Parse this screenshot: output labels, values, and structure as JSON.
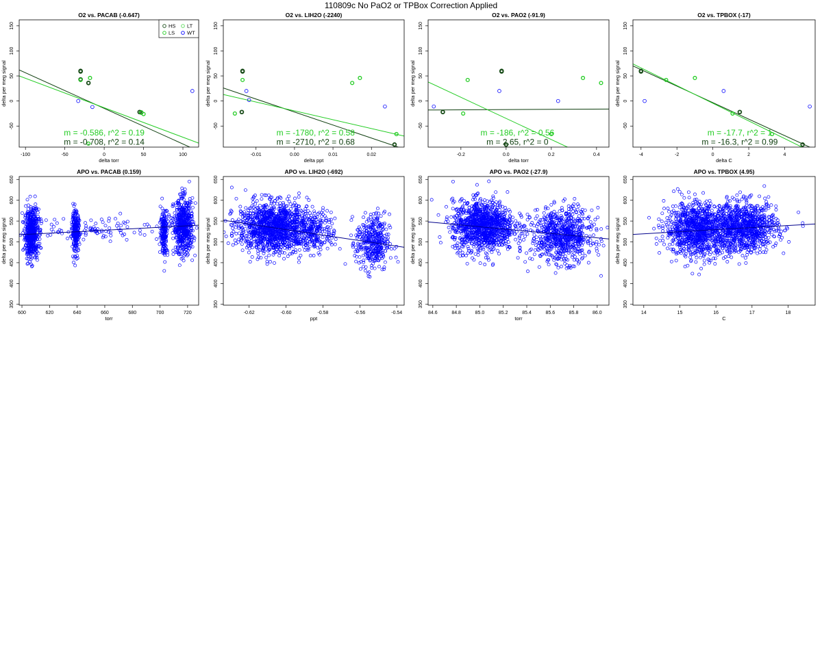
{
  "suptitle": "110809c   No PaO2 or TPBox Correction Applied",
  "colors": {
    "HS": "#1a4d1a",
    "LS": "#22cc22",
    "LT": "#5ddc5d",
    "WT": "#0000ff",
    "fit_dark": "#0d3d0d",
    "fit_light": "#22cc22",
    "fit_blue": "#00008b"
  },
  "chart_data": [
    {
      "type": "scatter",
      "title": "O2 vs. PACAB (-0.647)",
      "xlabel": "delta torr",
      "ylabel": "delta per meg signal",
      "xlim": [
        -108,
        120
      ],
      "ylim": [
        -92,
        162
      ],
      "xticks": [
        -100,
        -50,
        0,
        50,
        100
      ],
      "xtick_labels": [
        "-100",
        "-50",
        "0",
        "50",
        "100"
      ],
      "yticks": [
        -50,
        0,
        50,
        100,
        150
      ],
      "ytick_labels": [
        "-50",
        "0",
        "50",
        "100",
        "150"
      ],
      "legend": {
        "position": "top-right",
        "entries": [
          "HS",
          "LT",
          "LS",
          "WT"
        ]
      },
      "series": [
        {
          "name": "HS",
          "x": [
            -30,
            -30,
            -30,
            -20,
            45,
            47
          ],
          "y": [
            60,
            59,
            43,
            36,
            -22,
            -23
          ]
        },
        {
          "name": "LS",
          "x": [
            -30,
            -18,
            47,
            50,
            -20
          ],
          "y": [
            42,
            46,
            -23,
            -26,
            -85
          ]
        },
        {
          "name": "WT",
          "x": [
            -33,
            -15,
            112
          ],
          "y": [
            0,
            -12,
            20
          ]
        }
      ],
      "fits": [
        {
          "color": "fit_dark",
          "x": [
            -108,
            120
          ],
          "y": [
            62,
            -100
          ]
        },
        {
          "color": "fit_light",
          "x": [
            -108,
            120
          ],
          "y": [
            50,
            -84
          ]
        }
      ],
      "annotations": [
        {
          "text": "m = -0.586, r^2 = 0.19",
          "color": "fit_light",
          "x": 0,
          "y": -63
        },
        {
          "text": "m = -0.708, r^2 = 0.14",
          "color": "fit_dark",
          "x": 0,
          "y": -82
        }
      ]
    },
    {
      "type": "scatter",
      "title": "O2 vs. LIH2O (-2240)",
      "xlabel": "delta ppt",
      "ylabel": "delta per meg signal",
      "xlim": [
        -0.0185,
        0.0285
      ],
      "ylim": [
        -92,
        162
      ],
      "xticks": [
        -0.01,
        0,
        0.01,
        0.02
      ],
      "xtick_labels": [
        "-0.01",
        "0.00",
        "0.01",
        "0.02"
      ],
      "yticks": [
        -50,
        0,
        50,
        100,
        150
      ],
      "ytick_labels": [
        "-50",
        "0",
        "50",
        "100",
        "150"
      ],
      "series": [
        {
          "name": "HS",
          "x": [
            -0.0135,
            -0.0135,
            -0.0137,
            0.026
          ],
          "y": [
            60,
            59,
            -22,
            -87
          ]
        },
        {
          "name": "LS",
          "x": [
            -0.0135,
            -0.0155,
            0.017,
            0.015,
            0.0265
          ],
          "y": [
            42,
            -25,
            46,
            36,
            -66
          ]
        },
        {
          "name": "WT",
          "x": [
            -0.0125,
            -0.0118,
            0.0235
          ],
          "y": [
            20,
            2,
            -11
          ]
        }
      ],
      "fits": [
        {
          "color": "fit_dark",
          "x": [
            -0.0185,
            0.0285
          ],
          "y": [
            26,
            -96
          ]
        },
        {
          "color": "fit_light",
          "x": [
            -0.0185,
            0.0285
          ],
          "y": [
            13,
            -70
          ]
        }
      ],
      "annotations": [
        {
          "text": "m = -1780, r^2 = 0.58",
          "color": "fit_light",
          "x": 0.0055,
          "y": -63
        },
        {
          "text": "m = -2710, r^2 = 0.68",
          "color": "fit_dark",
          "x": 0.0055,
          "y": -82
        }
      ]
    },
    {
      "type": "scatter",
      "title": "O2 vs. PAO2 (-91.9)",
      "xlabel": "delta torr",
      "ylabel": "delta per meg signal",
      "xlim": [
        -0.345,
        0.455
      ],
      "ylim": [
        -92,
        162
      ],
      "xticks": [
        -0.2,
        0,
        0.2,
        0.4
      ],
      "xtick_labels": [
        "-0.2",
        "0.0",
        "0.2",
        "0.4"
      ],
      "yticks": [
        -50,
        0,
        50,
        100,
        150
      ],
      "ytick_labels": [
        "-50",
        "0",
        "50",
        "100",
        "150"
      ],
      "series": [
        {
          "name": "HS",
          "x": [
            -0.02,
            -0.02,
            -0.28,
            0.0
          ],
          "y": [
            60,
            59,
            -22,
            -87
          ]
        },
        {
          "name": "LS",
          "x": [
            -0.17,
            -0.19,
            0.34,
            0.42,
            0.2
          ],
          "y": [
            42,
            -25,
            46,
            36,
            -66
          ]
        },
        {
          "name": "WT",
          "x": [
            -0.32,
            -0.03,
            0.23
          ],
          "y": [
            -11,
            20,
            0
          ]
        }
      ],
      "fits": [
        {
          "color": "fit_dark",
          "x": [
            -0.345,
            0.455
          ],
          "y": [
            -18,
            -16
          ]
        },
        {
          "color": "fit_light",
          "x": [
            -0.345,
            0.3
          ],
          "y": [
            38,
            -98
          ]
        }
      ],
      "annotations": [
        {
          "text": "m = -186, r^2 = 0.56",
          "color": "fit_light",
          "x": 0.05,
          "y": -63
        },
        {
          "text": "m = 2.65, r^2 = 0",
          "color": "fit_dark",
          "x": 0.05,
          "y": -82
        }
      ]
    },
    {
      "type": "scatter",
      "title": "O2 vs. TPBOX (-17)",
      "xlabel": "delta C",
      "ylabel": "delta per meg signal",
      "xlim": [
        -4.45,
        5.7
      ],
      "ylim": [
        -92,
        162
      ],
      "xticks": [
        -4,
        -2,
        0,
        2,
        4
      ],
      "xtick_labels": [
        "-4",
        "-2",
        "0",
        "2",
        "4"
      ],
      "yticks": [
        -50,
        0,
        50,
        100,
        150
      ],
      "ytick_labels": [
        "-50",
        "0",
        "50",
        "100",
        "150"
      ],
      "series": [
        {
          "name": "HS",
          "x": [
            -4.0,
            -4.0,
            1.5,
            5.0
          ],
          "y": [
            60,
            59,
            -22,
            -87
          ]
        },
        {
          "name": "LS",
          "x": [
            -2.6,
            1.1,
            -1.0,
            3.3
          ],
          "y": [
            42,
            -25,
            46,
            -66
          ]
        },
        {
          "name": "WT",
          "x": [
            -3.8,
            0.6,
            5.4
          ],
          "y": [
            0,
            20,
            -11
          ]
        }
      ],
      "fits": [
        {
          "color": "fit_dark",
          "x": [
            -4.45,
            5.7
          ],
          "y": [
            70,
            -97
          ]
        },
        {
          "color": "fit_light",
          "x": [
            -4.45,
            5.7
          ],
          "y": [
            74,
            -105
          ]
        }
      ],
      "annotations": [
        {
          "text": "m = -17.7, r^2 = 1",
          "color": "fit_light",
          "x": 1.5,
          "y": -63
        },
        {
          "text": "m = -16.3, r^2 = 0.99",
          "color": "fit_dark",
          "x": 1.5,
          "y": -82
        }
      ]
    },
    {
      "type": "scatter",
      "title": "APO vs. PACAB (0.159)",
      "xlabel": "torr",
      "ylabel": "delta per meg signal",
      "xlim": [
        598,
        728
      ],
      "ylim": [
        348,
        657
      ],
      "xticks": [
        600,
        620,
        640,
        660,
        680,
        700,
        720
      ],
      "xtick_labels": [
        "600",
        "620",
        "640",
        "660",
        "680",
        "700",
        "720"
      ],
      "yticks": [
        350,
        400,
        450,
        500,
        550,
        600,
        650
      ],
      "ytick_labels": [
        "350",
        "400",
        "450",
        "500",
        "550",
        "600",
        "650"
      ],
      "clusters": [
        {
          "xc": 607,
          "xs": 2.5,
          "yc": 520,
          "ys": 30,
          "n": 520
        },
        {
          "xc": 639,
          "xs": 1.3,
          "yc": 523,
          "ys": 24,
          "n": 240
        },
        {
          "xc": 703,
          "xs": 1.3,
          "yc": 525,
          "ys": 28,
          "n": 180
        },
        {
          "xc": 717,
          "xs": 3.5,
          "yc": 536,
          "ys": 33,
          "n": 560
        },
        {
          "xc": 660,
          "xs": 28,
          "yc": 532,
          "ys": 14,
          "n": 110
        }
      ],
      "fits": [
        {
          "color": "fit_blue",
          "x": [
            598,
            728
          ],
          "y": [
            517,
            540
          ]
        }
      ]
    },
    {
      "type": "scatter",
      "title": "APO vs. LIH2O (-692)",
      "xlabel": "ppt",
      "ylabel": "delta per meg signal",
      "xlim": [
        -0.634,
        -0.536
      ],
      "ylim": [
        348,
        657
      ],
      "xticks": [
        -0.62,
        -0.6,
        -0.58,
        -0.56,
        -0.54
      ],
      "xtick_labels": [
        "-0.62",
        "-0.60",
        "-0.58",
        "-0.56",
        "-0.54"
      ],
      "yticks": [
        350,
        400,
        450,
        500,
        550,
        600,
        650
      ],
      "ytick_labels": [
        "350",
        "400",
        "450",
        "500",
        "550",
        "600",
        "650"
      ],
      "clusters": [
        {
          "xc": -0.607,
          "xs": 0.0095,
          "yc": 535,
          "ys": 30,
          "n": 1250
        },
        {
          "xc": -0.585,
          "xs": 0.006,
          "yc": 525,
          "ys": 24,
          "n": 250
        },
        {
          "xc": -0.553,
          "xs": 0.0045,
          "yc": 498,
          "ys": 34,
          "n": 380
        }
      ],
      "fits": [
        {
          "color": "fit_blue",
          "x": [
            -0.634,
            -0.536
          ],
          "y": [
            552,
            487
          ]
        }
      ]
    },
    {
      "type": "scatter",
      "title": "APO vs. PAO2 (-27.9)",
      "xlabel": "torr",
      "ylabel": "delta per meg signal",
      "xlim": [
        84.56,
        86.1
      ],
      "ylim": [
        348,
        657
      ],
      "xticks": [
        84.6,
        84.8,
        85.0,
        85.2,
        85.4,
        85.6,
        85.8,
        86.0
      ],
      "xtick_labels": [
        "84.6",
        "84.8",
        "85.0",
        "85.2",
        "85.4",
        "85.6",
        "85.8",
        "86.0"
      ],
      "yticks": [
        350,
        400,
        450,
        500,
        550,
        600,
        650
      ],
      "ytick_labels": [
        "350",
        "400",
        "450",
        "500",
        "550",
        "600",
        "650"
      ],
      "clusters": [
        {
          "xc": 85.03,
          "xs": 0.13,
          "yc": 538,
          "ys": 30,
          "n": 1150
        },
        {
          "xc": 85.7,
          "xs": 0.13,
          "yc": 515,
          "ys": 32,
          "n": 750
        }
      ],
      "fits": [
        {
          "color": "fit_blue",
          "x": [
            84.56,
            86.1
          ],
          "y": [
            548,
            507
          ]
        }
      ]
    },
    {
      "type": "scatter",
      "title": "APO vs. TPBOX (4.95)",
      "xlabel": "C",
      "ylabel": "delta per meg signal",
      "xlim": [
        13.7,
        18.75
      ],
      "ylim": [
        348,
        657
      ],
      "xticks": [
        14,
        15,
        16,
        17,
        18
      ],
      "xtick_labels": [
        "14",
        "15",
        "16",
        "17",
        "18"
      ],
      "yticks": [
        350,
        400,
        450,
        500,
        550,
        600,
        650
      ],
      "ytick_labels": [
        "350",
        "400",
        "450",
        "500",
        "550",
        "600",
        "650"
      ],
      "clusters": [
        {
          "xc": 15.5,
          "xs": 0.45,
          "yc": 530,
          "ys": 32,
          "n": 1000
        },
        {
          "xc": 16.8,
          "xs": 0.45,
          "yc": 535,
          "ys": 30,
          "n": 900
        }
      ],
      "fits": [
        {
          "color": "fit_blue",
          "x": [
            13.7,
            18.75
          ],
          "y": [
            518,
            543
          ]
        }
      ]
    }
  ]
}
